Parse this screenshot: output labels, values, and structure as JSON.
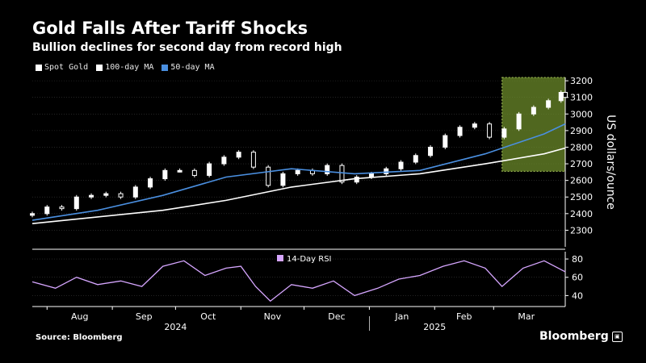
{
  "header": {
    "title": "Gold Falls After Tariff Shocks",
    "subtitle": "Bullion declines for second day from record high"
  },
  "footer": {
    "source": "Source: Bloomberg",
    "brand": "Bloomberg"
  },
  "colors": {
    "background": "#000000",
    "spot_gold": "#ffffff",
    "ma100": "#ffffff",
    "ma50": "#4a8fe0",
    "rsi": "#d6a6ff",
    "highlight_fill": "#6b8a2a",
    "grid": "#3a3a3a"
  },
  "chart_data": [
    {
      "type": "line",
      "title": "Gold Falls After Tariff Shocks",
      "subtitle": "Bullion declines for second day from record high",
      "ylabel": "US dollars/ounce",
      "ylim": [
        2200,
        3220
      ],
      "yticks": [
        2300,
        2400,
        2500,
        2600,
        2700,
        2800,
        2900,
        3000,
        3100,
        3200
      ],
      "grid": true,
      "legend_position": "top-left",
      "x_months": [
        "Aug",
        "Sep",
        "Oct",
        "Nov",
        "Dec",
        "Jan",
        "Feb",
        "Mar"
      ],
      "x_years": [
        "2024",
        "2025"
      ],
      "x_range": [
        "2024-07-25",
        "2025-04-04"
      ],
      "highlight": {
        "x_start": "2025-03-05",
        "x_end": "2025-04-04",
        "y_start": 2655,
        "y_end": 3220
      },
      "series": [
        {
          "name": "Spot Gold",
          "style": "candlestick",
          "x": [
            "2024-07-25",
            "2024-08-01",
            "2024-08-08",
            "2024-08-15",
            "2024-08-22",
            "2024-08-29",
            "2024-09-05",
            "2024-09-12",
            "2024-09-19",
            "2024-09-26",
            "2024-10-03",
            "2024-10-10",
            "2024-10-17",
            "2024-10-24",
            "2024-10-31",
            "2024-11-07",
            "2024-11-14",
            "2024-11-21",
            "2024-11-28",
            "2024-12-05",
            "2024-12-12",
            "2024-12-19",
            "2024-12-26",
            "2025-01-02",
            "2025-01-09",
            "2025-01-16",
            "2025-01-23",
            "2025-01-30",
            "2025-02-06",
            "2025-02-13",
            "2025-02-20",
            "2025-02-27",
            "2025-03-06",
            "2025-03-13",
            "2025-03-20",
            "2025-03-27",
            "2025-04-02",
            "2025-04-04"
          ],
          "values": [
            2400,
            2440,
            2430,
            2500,
            2510,
            2520,
            2500,
            2560,
            2610,
            2660,
            2660,
            2630,
            2700,
            2740,
            2770,
            2680,
            2570,
            2640,
            2660,
            2640,
            2690,
            2590,
            2620,
            2640,
            2670,
            2710,
            2750,
            2800,
            2870,
            2920,
            2940,
            2860,
            2910,
            3000,
            3040,
            3080,
            3130,
            3100
          ]
        },
        {
          "name": "100-day MA",
          "x": [
            "2024-07-25",
            "2024-08-25",
            "2024-09-25",
            "2024-10-25",
            "2024-11-25",
            "2024-12-25",
            "2025-01-25",
            "2025-02-25",
            "2025-03-25",
            "2025-04-04"
          ],
          "values": [
            2340,
            2380,
            2420,
            2480,
            2560,
            2610,
            2640,
            2700,
            2760,
            2795
          ]
        },
        {
          "name": "50-day MA",
          "x": [
            "2024-07-25",
            "2024-08-25",
            "2024-09-25",
            "2024-10-25",
            "2024-11-25",
            "2024-12-25",
            "2025-01-25",
            "2025-02-25",
            "2025-03-25",
            "2025-04-04"
          ],
          "values": [
            2360,
            2420,
            2510,
            2620,
            2670,
            2640,
            2660,
            2760,
            2880,
            2940
          ]
        }
      ]
    },
    {
      "type": "line",
      "legend": "14-Day RSI",
      "ylim": [
        28,
        88
      ],
      "yticks": [
        40,
        60,
        80
      ],
      "x_range": [
        "2024-07-25",
        "2025-04-04"
      ],
      "series": [
        {
          "name": "14-Day RSI",
          "x": [
            "2024-07-25",
            "2024-08-05",
            "2024-08-15",
            "2024-08-25",
            "2024-09-05",
            "2024-09-15",
            "2024-09-25",
            "2024-10-05",
            "2024-10-15",
            "2024-10-25",
            "2024-11-01",
            "2024-11-08",
            "2024-11-15",
            "2024-11-25",
            "2024-12-05",
            "2024-12-15",
            "2024-12-25",
            "2025-01-05",
            "2025-01-15",
            "2025-01-25",
            "2025-02-05",
            "2025-02-15",
            "2025-02-25",
            "2025-03-05",
            "2025-03-15",
            "2025-03-25",
            "2025-04-04"
          ],
          "values": [
            55,
            48,
            60,
            52,
            56,
            50,
            72,
            78,
            62,
            70,
            72,
            50,
            34,
            52,
            48,
            56,
            40,
            48,
            58,
            62,
            72,
            78,
            70,
            50,
            70,
            78,
            66
          ]
        }
      ]
    }
  ]
}
